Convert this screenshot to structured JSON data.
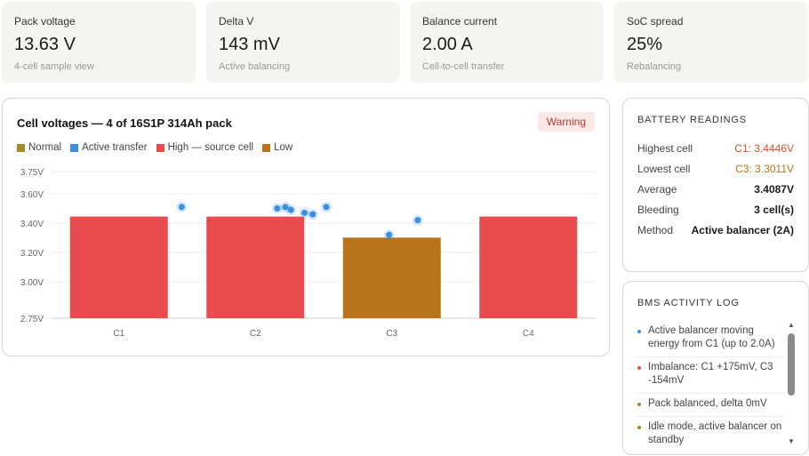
{
  "stats": [
    {
      "label": "Pack voltage",
      "value": "13.63 V",
      "sub": "4-cell sample view"
    },
    {
      "label": "Delta V",
      "value": "143 mV",
      "sub": "Active balancing"
    },
    {
      "label": "Balance current",
      "value": "2.00 A",
      "sub": "Cell-to-cell transfer"
    },
    {
      "label": "SoC spread",
      "value": "25%",
      "sub": "Rebalancing"
    }
  ],
  "chart_panel": {
    "title": "Cell voltages — 4 of 16S1P 314Ah pack",
    "badge": "Warning",
    "legend": [
      {
        "label": "Normal",
        "color": "#a08a2a"
      },
      {
        "label": "Active transfer",
        "color": "#3b8fdd"
      },
      {
        "label": "High — source cell",
        "color": "#e84c4f"
      },
      {
        "label": "Low",
        "color": "#b8731b"
      }
    ]
  },
  "chart_data": {
    "type": "bar",
    "categories": [
      "C1",
      "C2",
      "C3",
      "C4"
    ],
    "values": [
      3.4446,
      3.4446,
      3.3011,
      3.4446
    ],
    "bar_colors": [
      "#e84c4f",
      "#e84c4f",
      "#b8731b",
      "#e84c4f"
    ],
    "yticks": [
      "3.75V",
      "3.60V",
      "3.40V",
      "3.20V",
      "3.00V",
      "2.75V"
    ],
    "ylim": [
      2.75,
      3.75
    ],
    "grid": true,
    "transfer_points": [
      {
        "x": 0.46,
        "y": 3.51
      },
      {
        "x": 1.16,
        "y": 3.5
      },
      {
        "x": 1.22,
        "y": 3.51
      },
      {
        "x": 1.26,
        "y": 3.49
      },
      {
        "x": 1.36,
        "y": 3.47
      },
      {
        "x": 1.42,
        "y": 3.46
      },
      {
        "x": 1.52,
        "y": 3.51
      },
      {
        "x": 1.98,
        "y": 3.32
      },
      {
        "x": 2.19,
        "y": 3.42
      }
    ],
    "transfer_color": "#3b8fdd"
  },
  "readings": {
    "heading": "BATTERY READINGS",
    "rows": [
      {
        "label": "Highest cell",
        "value": "C1: 3.4446V",
        "color": "#d0542c"
      },
      {
        "label": "Lowest cell",
        "value": "C3: 3.3011V",
        "color": "#b8731b"
      },
      {
        "label": "Average",
        "value": "3.4087V",
        "color": "#1a1a1a"
      },
      {
        "label": "Bleeding",
        "value": "3 cell(s)",
        "color": "#1a1a1a"
      },
      {
        "label": "Method",
        "value": "Active balancer (2A)",
        "color": "#1a1a1a"
      }
    ]
  },
  "activity_log": {
    "heading": "BMS ACTIVITY LOG",
    "items": [
      {
        "text": "Active balancer moving energy from C1 (up to 2.0A)",
        "color": "#3b8fdd"
      },
      {
        "text": "Imbalance: C1 +175mV, C3 -154mV",
        "color": "#e84c4f"
      },
      {
        "text": "Pack balanced, delta 0mV",
        "color": "#a08a2a"
      },
      {
        "text": "Idle mode, active balancer on standby",
        "color": "#a08a2a"
      }
    ],
    "scroll_up_icon": "▲",
    "scroll_down_icon": "▼"
  }
}
